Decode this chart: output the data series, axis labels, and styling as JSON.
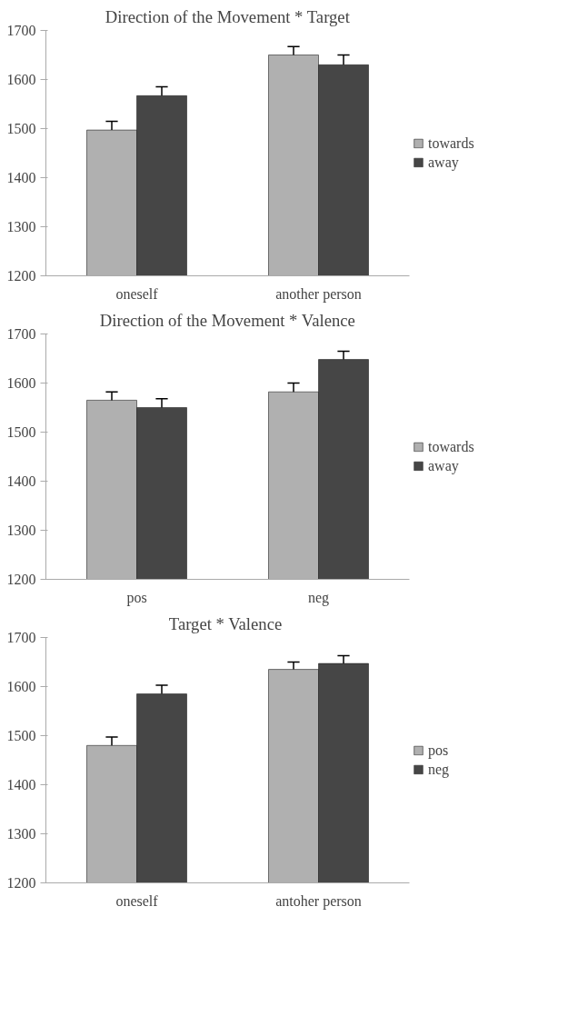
{
  "chart_data": [
    {
      "type": "bar",
      "title": "Direction of the Movement * Target",
      "categories": [
        "oneself",
        "another person"
      ],
      "series": [
        {
          "name": "towards",
          "color": "#b0b0b0",
          "values": [
            1497,
            1650
          ],
          "errors": [
            [
              1497,
              1515
            ],
            [
              1650,
              1667
            ]
          ]
        },
        {
          "name": "away",
          "color": "#464646",
          "values": [
            1567,
            1630
          ],
          "errors": [
            [
              1567,
              1585
            ],
            [
              1630,
              1650
            ]
          ]
        }
      ],
      "ylim": [
        1200,
        1700
      ],
      "yticks": [
        1200,
        1300,
        1400,
        1500,
        1600,
        1700
      ],
      "grid": false,
      "legend": "right"
    },
    {
      "type": "bar",
      "title": "Direction of the Movement * Valence",
      "categories": [
        "pos",
        "neg"
      ],
      "series": [
        {
          "name": "towards",
          "color": "#b0b0b0",
          "values": [
            1565,
            1582
          ],
          "errors": [
            [
              1565,
              1582
            ],
            [
              1582,
              1600
            ]
          ]
        },
        {
          "name": "away",
          "color": "#464646",
          "values": [
            1550,
            1648
          ],
          "errors": [
            [
              1550,
              1568
            ],
            [
              1648,
              1665
            ]
          ]
        }
      ],
      "ylim": [
        1200,
        1700
      ],
      "yticks": [
        1200,
        1300,
        1400,
        1500,
        1600,
        1700
      ],
      "grid": false,
      "legend": "right"
    },
    {
      "type": "bar",
      "title": "Target  * Valence",
      "categories": [
        "oneself",
        "antoher person"
      ],
      "series": [
        {
          "name": "pos",
          "color": "#b0b0b0",
          "values": [
            1480,
            1635
          ],
          "errors": [
            [
              1480,
              1497
            ],
            [
              1635,
              1650
            ]
          ]
        },
        {
          "name": "neg",
          "color": "#464646",
          "values": [
            1585,
            1647
          ],
          "errors": [
            [
              1585,
              1603
            ],
            [
              1647,
              1663
            ]
          ]
        }
      ],
      "ylim": [
        1200,
        1700
      ],
      "yticks": [
        1200,
        1300,
        1400,
        1500,
        1600,
        1700
      ],
      "grid": false,
      "legend": "right"
    }
  ]
}
